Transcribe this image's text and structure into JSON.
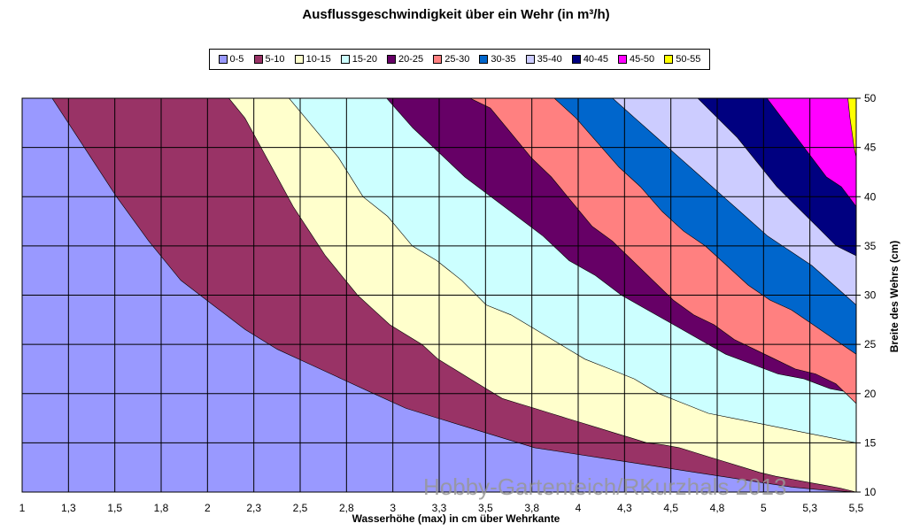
{
  "chart_data": {
    "type": "area",
    "title": "Ausflussgeschwindigkeit über ein Wehr (in m³/h)",
    "xlabel": "Wasserhöhe (max) in cm über Wehrkante",
    "ylabel": "Breite des Wehrs (cm)",
    "x_tick_labels": [
      "1",
      "1,3",
      "1,5",
      "1,8",
      "2",
      "2,3",
      "2,5",
      "2,8",
      "3",
      "3,3",
      "3,5",
      "3,8",
      "4",
      "4,3",
      "4,5",
      "4,8",
      "5",
      "5,3",
      "5,5"
    ],
    "y_tick_labels": [
      "10",
      "15",
      "20",
      "25",
      "30",
      "35",
      "40",
      "45",
      "50"
    ],
    "ylim": [
      10,
      50
    ],
    "y_axis_position": "right",
    "grid": true,
    "legend_position": "top",
    "legend": [
      {
        "label": "0-5",
        "color": "#9999FF"
      },
      {
        "label": "5-10",
        "color": "#993366"
      },
      {
        "label": "10-15",
        "color": "#FFFFCC"
      },
      {
        "label": "15-20",
        "color": "#CCFFFF"
      },
      {
        "label": "20-25",
        "color": "#660066"
      },
      {
        "label": "25-30",
        "color": "#FF8080"
      },
      {
        "label": "30-35",
        "color": "#0066CC"
      },
      {
        "label": "35-40",
        "color": "#CCCCFF"
      },
      {
        "label": "40-45",
        "color": "#000080"
      },
      {
        "label": "45-50",
        "color": "#FF00FF"
      },
      {
        "label": "50-55",
        "color": "#FFFF00"
      }
    ],
    "series": [
      {
        "name": "5-10",
        "boundary_y": [
          50,
          45,
          40,
          35.5,
          31.5,
          29,
          26.5,
          24.5,
          23,
          21.5,
          20,
          18.5,
          17.5,
          16.5,
          15.5,
          14.5,
          14,
          13.5,
          13,
          12.5,
          12,
          11.5,
          11,
          10.5,
          10.2,
          10
        ]
      },
      {
        "name": "10-15",
        "boundary_y": [
          50,
          50,
          50,
          50,
          48,
          45,
          42,
          39,
          36.5,
          34,
          32,
          30,
          28.5,
          27,
          26,
          25,
          23.5,
          22.5,
          21.5,
          20.5,
          19.5,
          19,
          18.5,
          18,
          17.5,
          17,
          16.5,
          16,
          15.5,
          15,
          14.8,
          14.5,
          14,
          13.5,
          13,
          12.5,
          12,
          11.6,
          11.3,
          11,
          10.7,
          10.4,
          10
        ]
      },
      {
        "name": "15-20",
        "boundary_y": [
          50,
          47,
          44,
          40,
          38,
          35,
          33.5,
          31.5,
          29,
          28,
          26.5,
          25,
          23.5,
          22.5,
          21.5,
          20,
          19,
          18,
          17.5,
          17,
          16.5,
          16,
          15.5,
          15
        ]
      },
      {
        "name": "20-25",
        "boundary_y": [
          50,
          47,
          44.5,
          42,
          40,
          38,
          36,
          33.5,
          32,
          30,
          28.5,
          27,
          25.5,
          24,
          23,
          22,
          21.5,
          20.5,
          20
        ]
      },
      {
        "name": "25-30",
        "boundary_y": [
          50,
          49,
          46.5,
          44,
          42,
          39.5,
          37,
          35.5,
          33.5,
          31.5,
          29.5,
          28,
          27,
          25.5,
          24.5,
          23.5,
          22.5,
          22,
          21,
          19
        ]
      },
      {
        "name": "30-35",
        "boundary_y": [
          50,
          48,
          45.5,
          43,
          41,
          38.5,
          36.5,
          35,
          33,
          31,
          29.5,
          28.5,
          27,
          25.5,
          24
        ]
      },
      {
        "name": "35-40",
        "boundary_y": [
          50,
          48,
          46,
          44,
          42,
          40,
          38,
          36,
          34.5,
          33,
          31,
          29
        ]
      },
      {
        "name": "40-45",
        "boundary_y": [
          50,
          48,
          46,
          43.5,
          41,
          39,
          37,
          35,
          34
        ]
      },
      {
        "name": "45-50",
        "boundary_y": [
          50,
          48,
          46,
          44,
          42,
          41,
          39
        ]
      },
      {
        "name": "50-55",
        "boundary_y": [
          50,
          48,
          46.5,
          45,
          44
        ]
      }
    ]
  },
  "watermark": "Hobby-Gartenteich/RKurzhals 2013"
}
